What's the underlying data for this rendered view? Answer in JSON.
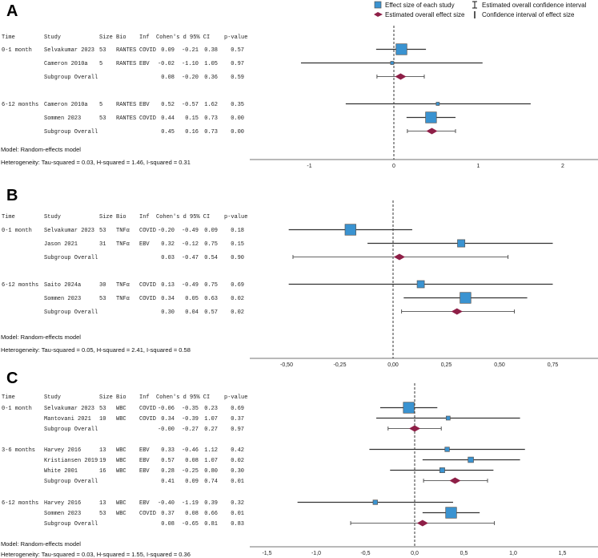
{
  "colors": {
    "study": "#3a93d1",
    "overall": "#8e1f47",
    "line": "#333333"
  },
  "legend": {
    "study_label": "Effect size of each study",
    "overall_label": "Estimated overall effect size",
    "overall_ci_label": "Estimated overall confidence interval",
    "study_ci_label": "Confidence interval of effect size"
  },
  "columns": [
    "Time",
    "Study",
    "Size",
    "Bio",
    "Inf",
    "Cohen's d",
    "95% CI",
    "p-value"
  ],
  "chart_data": [
    {
      "type": "forest",
      "panel": "A",
      "xlim": [
        -1.5,
        2.4
      ],
      "ticks": [
        {
          "v": -1,
          "label": "-1"
        },
        {
          "v": 0,
          "label": "0"
        },
        {
          "v": 1,
          "label": "1"
        },
        {
          "v": 2,
          "label": "2"
        }
      ],
      "subgroups": [
        {
          "time": "0-1 month",
          "rows": [
            {
              "study": "Selvakumar 2023",
              "size": "53",
              "bio": "RANTES",
              "inf": "COVID",
              "d": "0.09",
              "lo": "-0.21",
              "hi": "0.38",
              "p": "0.57"
            },
            {
              "study": "Cameron 2010a",
              "size": "5",
              "bio": "RANTES",
              "inf": "EBV",
              "d": "-0.02",
              "lo": "-1.10",
              "hi": "1.05",
              "p": "0.97"
            }
          ],
          "overall": {
            "study": "Subgroup Overall",
            "d": "0.08",
            "lo": "-0.20",
            "hi": "0.36",
            "p": "0.59"
          }
        },
        {
          "time": "6-12 months",
          "rows": [
            {
              "study": "Cameron 2010a",
              "size": "5",
              "bio": "RANTES",
              "inf": "EBV",
              "d": "0.52",
              "lo": "-0.57",
              "hi": "1.62",
              "p": "0.35"
            },
            {
              "study": "Sommen 2023",
              "size": "53",
              "bio": "RANTES",
              "inf": "COVID",
              "d": "0.44",
              "lo": "0.15",
              "hi": "0.73",
              "p": "0.00"
            }
          ],
          "overall": {
            "study": "Subgroup Overall",
            "d": "0.45",
            "lo": "0.16",
            "hi": "0.73",
            "p": "0.00"
          }
        }
      ],
      "model": "Model: Random-effects model",
      "heterogeneity": "Heterogeneity: Tau-squared = 0.03, H-squared = 1.46, I-squared = 0.31"
    },
    {
      "type": "forest",
      "panel": "B",
      "xlim": [
        -0.68,
        0.95
      ],
      "ticks": [
        {
          "v": -0.5,
          "label": "-0,50"
        },
        {
          "v": -0.25,
          "label": "-0,25"
        },
        {
          "v": 0,
          "label": "0,00"
        },
        {
          "v": 0.25,
          "label": "0,25"
        },
        {
          "v": 0.5,
          "label": "0,50"
        },
        {
          "v": 0.75,
          "label": "0,75"
        }
      ],
      "subgroups": [
        {
          "time": "0-1 month",
          "rows": [
            {
              "study": "Selvakumar 2023",
              "size": "53",
              "bio": "TNFα",
              "inf": "COVID",
              "d": "-0.20",
              "lo": "-0.49",
              "hi": "0.09",
              "p": "0.18"
            },
            {
              "study": "Jason 2021",
              "size": "31",
              "bio": "TNFα",
              "inf": "EBV",
              "d": "0.32",
              "lo": "-0.12",
              "hi": "0.75",
              "p": "0.15"
            }
          ],
          "overall": {
            "study": "Subgroup Overall",
            "d": "0.03",
            "lo": "-0.47",
            "hi": "0.54",
            "p": "0.90"
          }
        },
        {
          "time": "6-12 months",
          "rows": [
            {
              "study": "Saito 2024a",
              "size": "30",
              "bio": "TNFα",
              "inf": "COVID",
              "d": "0.13",
              "lo": "-0.49",
              "hi": "0.75",
              "p": "0.69"
            },
            {
              "study": "Sommen 2023",
              "size": "53",
              "bio": "TNFα",
              "inf": "COVID",
              "d": "0.34",
              "lo": "0.05",
              "hi": "0.63",
              "p": "0.02"
            }
          ],
          "overall": {
            "study": "Subgroup Overall",
            "d": "0.30",
            "lo": "0.04",
            "hi": "0.57",
            "p": "0.02"
          }
        }
      ],
      "model": "Model: Random-effects model",
      "heterogeneity": "Heterogeneity: Tau-squared = 0.05, H-squared = 2.41, I-squared = 0.58"
    },
    {
      "type": "forest",
      "panel": "C",
      "xlim": [
        -1.67,
        1.86
      ],
      "ticks": [
        {
          "v": -1.5,
          "label": "-1,5"
        },
        {
          "v": -1,
          "label": "-1,0"
        },
        {
          "v": -0.5,
          "label": "-0,5"
        },
        {
          "v": 0,
          "label": "0,0"
        },
        {
          "v": 0.5,
          "label": "0,5"
        },
        {
          "v": 1,
          "label": "1,0"
        },
        {
          "v": 1.5,
          "label": "1,5"
        }
      ],
      "subgroups": [
        {
          "time": "0-1 month",
          "rows": [
            {
              "study": "Selvakumar 2023",
              "size": "53",
              "bio": "WBC",
              "inf": "COVID",
              "d": "-0.06",
              "lo": "-0.35",
              "hi": "0.23",
              "p": "0.69"
            },
            {
              "study": "Mantovani 2021",
              "size": "10",
              "bio": "WBC",
              "inf": "COVID",
              "d": "0.34",
              "lo": "-0.39",
              "hi": "1.07",
              "p": "0.37"
            }
          ],
          "overall": {
            "study": "Subgroup Overall",
            "d": "-0.00",
            "lo": "-0.27",
            "hi": "0.27",
            "p": "0.97"
          }
        },
        {
          "time": "3-6 months",
          "rows": [
            {
              "study": "Harvey 2016",
              "size": "13",
              "bio": "WBC",
              "inf": "EBV",
              "d": "0.33",
              "lo": "-0.46",
              "hi": "1.12",
              "p": "0.42"
            },
            {
              "study": "Kristiansen 2019",
              "size": "19",
              "bio": "WBC",
              "inf": "EBV",
              "d": "0.57",
              "lo": "0.08",
              "hi": "1.07",
              "p": "0.02"
            },
            {
              "study": "White 2001",
              "size": "16",
              "bio": "WBC",
              "inf": "EBV",
              "d": "0.28",
              "lo": "-0.25",
              "hi": "0.80",
              "p": "0.30"
            }
          ],
          "overall": {
            "study": "Subgroup Overall",
            "d": "0.41",
            "lo": "0.09",
            "hi": "0.74",
            "p": "0.01"
          }
        },
        {
          "time": "6-12 months",
          "rows": [
            {
              "study": "Harvey 2016",
              "size": "13",
              "bio": "WBC",
              "inf": "EBV",
              "d": "-0.40",
              "lo": "-1.19",
              "hi": "0.39",
              "p": "0.32"
            },
            {
              "study": "Sommen 2023",
              "size": "53",
              "bio": "WBC",
              "inf": "COVID",
              "d": "0.37",
              "lo": "0.08",
              "hi": "0.66",
              "p": "0.01"
            }
          ],
          "overall": {
            "study": "Subgroup Overall",
            "d": "0.08",
            "lo": "-0.65",
            "hi": "0.81",
            "p": "0.83"
          }
        }
      ],
      "model": "Model: Random-effects model",
      "heterogeneity": "Heterogeneity: Tau-squared = 0.03, H-squared = 1.55, I-squared = 0.36"
    }
  ]
}
